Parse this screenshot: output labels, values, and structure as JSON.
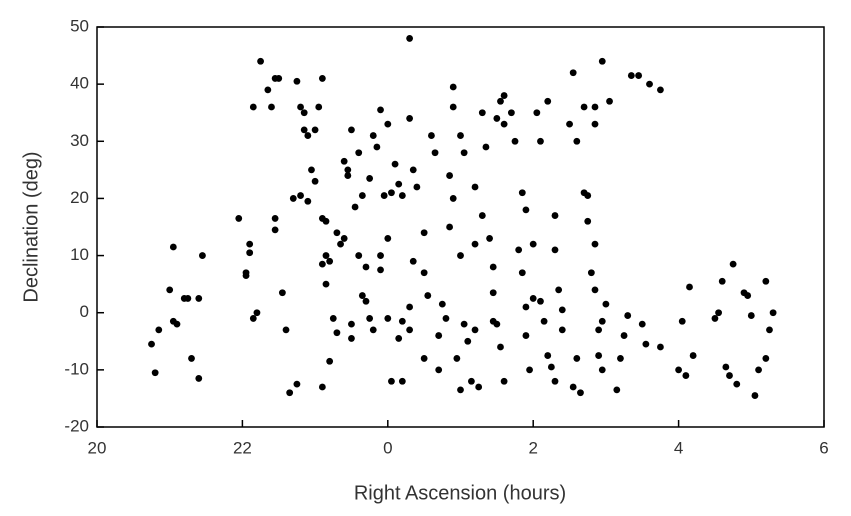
{
  "chart_data": {
    "type": "scatter",
    "x_label": "Right Ascension (hours)",
    "y_label": "Declination (deg)",
    "xlim": [
      -4,
      6
    ],
    "ylim": [
      -20,
      50
    ],
    "xticks": [
      {
        "value": -4,
        "label": "20"
      },
      {
        "value": -2,
        "label": "22"
      },
      0,
      2,
      4,
      6
    ],
    "yticks": [
      -20,
      -10,
      0,
      10,
      20,
      30,
      40,
      50
    ],
    "color": "#000000",
    "x": [
      -3.25,
      -3.2,
      -3.15,
      -2.95,
      -3.0,
      -2.95,
      -2.9,
      -2.8,
      -2.75,
      -2.7,
      -2.6,
      -2.6,
      -2.55,
      -2.05,
      -1.95,
      -1.95,
      -1.9,
      -1.9,
      -1.85,
      -1.8,
      -1.85,
      -1.75,
      -1.65,
      -1.55,
      -1.5,
      -1.6,
      -1.55,
      -1.55,
      -1.45,
      -1.4,
      -1.35,
      -1.25,
      -1.25,
      -1.2,
      -1.15,
      -1.15,
      -1.1,
      -1.0,
      -1.3,
      -1.2,
      -1.1,
      -1.05,
      -1.0,
      -0.9,
      -0.95,
      -0.9,
      -0.85,
      -0.85,
      -0.9,
      -0.8,
      -0.85,
      -0.9,
      -0.8,
      -0.75,
      -0.7,
      -0.7,
      -0.6,
      -0.65,
      -0.6,
      -0.55,
      -0.55,
      -0.5,
      -0.4,
      -0.45,
      -0.35,
      -0.4,
      -0.3,
      -0.35,
      -0.3,
      -0.25,
      -0.5,
      -0.5,
      -0.2,
      -0.2,
      -0.15,
      -0.25,
      -0.1,
      0.0,
      -0.05,
      0.05,
      0.1,
      0.15,
      0.2,
      0.0,
      -0.1,
      -0.1,
      0.0,
      0.05,
      0.2,
      0.15,
      0.2,
      0.3,
      0.3,
      0.35,
      0.3,
      0.3,
      0.35,
      0.4,
      0.5,
      0.5,
      0.55,
      0.6,
      0.65,
      0.7,
      0.7,
      0.75,
      0.8,
      0.85,
      0.9,
      0.85,
      0.9,
      0.9,
      1.0,
      1.05,
      1.0,
      1.05,
      1.1,
      1.15,
      1.2,
      1.2,
      1.3,
      1.3,
      1.35,
      1.2,
      1.25,
      1.4,
      1.45,
      1.45,
      1.45,
      1.55,
      1.6,
      1.6,
      1.6,
      1.55,
      1.5,
      1.7,
      1.75,
      1.85,
      1.9,
      1.8,
      1.85,
      1.9,
      1.9,
      1.95,
      2.0,
      2.05,
      2.1,
      2.2,
      2.0,
      2.1,
      2.15,
      2.2,
      2.25,
      2.3,
      2.3,
      2.35,
      2.4,
      2.4,
      2.5,
      2.55,
      2.6,
      2.7,
      2.55,
      2.6,
      2.65,
      2.7,
      2.75,
      2.75,
      2.8,
      2.85,
      2.9,
      2.9,
      2.95,
      2.95,
      2.85,
      2.85,
      2.95,
      3.05,
      3.0,
      3.15,
      3.2,
      3.25,
      3.3,
      3.35,
      3.45,
      3.5,
      3.55,
      3.6,
      3.75,
      3.75,
      4.0,
      4.05,
      4.1,
      4.15,
      4.2,
      4.5,
      4.55,
      4.6,
      4.65,
      4.7,
      4.75,
      4.8,
      4.9,
      4.95,
      5.0,
      5.05,
      5.1,
      5.2,
      5.25,
      5.2,
      5.3,
      2.3,
      1.0,
      0.95,
      1.5,
      2.85,
      0.5
    ],
    "values": [
      -5.5,
      -10.5,
      -3,
      11.5,
      4,
      -1.5,
      -2,
      2.5,
      2.5,
      -8,
      -11.5,
      2.5,
      10,
      16.5,
      7,
      6.5,
      12,
      10.5,
      -1,
      0,
      36,
      44,
      39,
      41,
      41,
      36,
      16.5,
      14.5,
      3.5,
      -3,
      -14,
      -12.5,
      40.5,
      36,
      32,
      35,
      31,
      32,
      20,
      20.5,
      19.5,
      25,
      23,
      41,
      36,
      16.5,
      16,
      10,
      8.5,
      9,
      5,
      -13,
      -8.5,
      -1,
      -3.5,
      14,
      13,
      12,
      26.5,
      25,
      24,
      32,
      28,
      18.5,
      20.5,
      10,
      8,
      3,
      2,
      -1,
      -2,
      -4.5,
      -3,
      31,
      29,
      23.5,
      35.5,
      33,
      20.5,
      21,
      26,
      22.5,
      20.5,
      13,
      10,
      7.5,
      -1,
      -12,
      -12,
      -4.5,
      -1.5,
      1,
      -3,
      9,
      48,
      34,
      25,
      22,
      14,
      7,
      3,
      31,
      28,
      -10,
      -4,
      1.5,
      -1,
      15,
      20,
      24,
      39.5,
      36,
      31,
      28,
      10,
      -2,
      -5,
      -12,
      12,
      22,
      17,
      35,
      29,
      -3,
      -13,
      13,
      8,
      3.5,
      -1.5,
      -6,
      -12,
      33,
      38,
      37,
      34,
      35,
      30,
      21,
      18,
      11,
      7,
      1,
      -4,
      -10,
      12,
      35,
      30,
      37,
      2.5,
      2,
      -1.5,
      -7.5,
      -9.5,
      17,
      11,
      4,
      0.5,
      -3,
      33,
      42,
      30,
      36,
      -13,
      -8,
      -14,
      21,
      16,
      20.5,
      7,
      4,
      -3,
      -7.5,
      -10,
      -1.5,
      36,
      33,
      44,
      37,
      1.5,
      -13.5,
      -8,
      -4,
      -0.5,
      41.5,
      41.5,
      -2,
      -5.5,
      40,
      39,
      -6,
      -10,
      -1.5,
      -11,
      4.5,
      -7.5,
      -1,
      0,
      5.5,
      -9.5,
      -11,
      8.5,
      -12.5,
      3.5,
      3,
      -0.5,
      -14.5,
      -10,
      -8,
      -3,
      5.5,
      0,
      -12,
      -13.5,
      -8,
      -2,
      12,
      -8
    ]
  }
}
